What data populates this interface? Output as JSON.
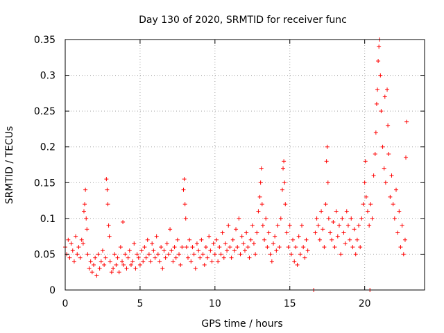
{
  "chart_data": {
    "type": "scatter",
    "title": "Day 130 of 2020, SRMTID for receiver func",
    "xlabel": "GPS time / hours",
    "ylabel": "SRMTID / TECUs",
    "xlim": [
      0,
      24
    ],
    "ylim": [
      0,
      0.35
    ],
    "xticks": [
      0,
      5,
      10,
      15,
      20
    ],
    "xtick_labels": [
      "0",
      "5",
      "10",
      "15",
      "20"
    ],
    "yticks": [
      0,
      0.05,
      0.1,
      0.15,
      0.2,
      0.25,
      0.3,
      0.35
    ],
    "ytick_labels": [
      "0",
      "0.05",
      "0.1",
      "0.15",
      "0.2",
      "0.25",
      "0.3",
      "0.35"
    ],
    "grid": true,
    "marker": "+",
    "color": "#ff0000",
    "points": [
      [
        0.0,
        0.06
      ],
      [
        0.1,
        0.05
      ],
      [
        0.2,
        0.07
      ],
      [
        0.3,
        0.045
      ],
      [
        0.4,
        0.065
      ],
      [
        0.5,
        0.055
      ],
      [
        0.6,
        0.04
      ],
      [
        0.7,
        0.075
      ],
      [
        0.8,
        0.05
      ],
      [
        0.9,
        0.06
      ],
      [
        1.0,
        0.045
      ],
      [
        1.1,
        0.07
      ],
      [
        1.2,
        0.065
      ],
      [
        1.25,
        0.11
      ],
      [
        1.3,
        0.12
      ],
      [
        1.35,
        0.14
      ],
      [
        1.4,
        0.1
      ],
      [
        1.45,
        0.085
      ],
      [
        1.5,
        0.05
      ],
      [
        1.6,
        0.03
      ],
      [
        1.7,
        0.04
      ],
      [
        1.8,
        0.025
      ],
      [
        1.9,
        0.035
      ],
      [
        2.0,
        0.045
      ],
      [
        2.1,
        0.02
      ],
      [
        2.2,
        0.05
      ],
      [
        2.3,
        0.03
      ],
      [
        2.4,
        0.04
      ],
      [
        2.5,
        0.055
      ],
      [
        2.6,
        0.035
      ],
      [
        2.7,
        0.045
      ],
      [
        2.75,
        0.155
      ],
      [
        2.8,
        0.14
      ],
      [
        2.85,
        0.12
      ],
      [
        2.9,
        0.09
      ],
      [
        2.95,
        0.075
      ],
      [
        3.0,
        0.04
      ],
      [
        3.1,
        0.025
      ],
      [
        3.2,
        0.03
      ],
      [
        3.3,
        0.05
      ],
      [
        3.4,
        0.035
      ],
      [
        3.5,
        0.045
      ],
      [
        3.6,
        0.025
      ],
      [
        3.7,
        0.06
      ],
      [
        3.8,
        0.04
      ],
      [
        3.85,
        0.095
      ],
      [
        3.9,
        0.035
      ],
      [
        4.0,
        0.05
      ],
      [
        4.1,
        0.03
      ],
      [
        4.2,
        0.045
      ],
      [
        4.3,
        0.055
      ],
      [
        4.4,
        0.035
      ],
      [
        4.5,
        0.04
      ],
      [
        4.6,
        0.065
      ],
      [
        4.7,
        0.03
      ],
      [
        4.8,
        0.05
      ],
      [
        4.9,
        0.045
      ],
      [
        5.0,
        0.035
      ],
      [
        5.1,
        0.055
      ],
      [
        5.2,
        0.04
      ],
      [
        5.3,
        0.06
      ],
      [
        5.4,
        0.045
      ],
      [
        5.5,
        0.07
      ],
      [
        5.6,
        0.05
      ],
      [
        5.7,
        0.04
      ],
      [
        5.8,
        0.065
      ],
      [
        5.9,
        0.055
      ],
      [
        6.0,
        0.045
      ],
      [
        6.1,
        0.075
      ],
      [
        6.2,
        0.05
      ],
      [
        6.3,
        0.04
      ],
      [
        6.4,
        0.06
      ],
      [
        6.5,
        0.03
      ],
      [
        6.6,
        0.055
      ],
      [
        6.7,
        0.045
      ],
      [
        6.8,
        0.065
      ],
      [
        6.9,
        0.05
      ],
      [
        7.0,
        0.085
      ],
      [
        7.1,
        0.055
      ],
      [
        7.2,
        0.04
      ],
      [
        7.3,
        0.06
      ],
      [
        7.4,
        0.045
      ],
      [
        7.5,
        0.07
      ],
      [
        7.6,
        0.05
      ],
      [
        7.7,
        0.035
      ],
      [
        7.8,
        0.06
      ],
      [
        7.9,
        0.14
      ],
      [
        7.95,
        0.155
      ],
      [
        8.0,
        0.12
      ],
      [
        8.05,
        0.1
      ],
      [
        8.1,
        0.06
      ],
      [
        8.2,
        0.045
      ],
      [
        8.3,
        0.07
      ],
      [
        8.4,
        0.04
      ],
      [
        8.5,
        0.06
      ],
      [
        8.6,
        0.05
      ],
      [
        8.7,
        0.03
      ],
      [
        8.8,
        0.065
      ],
      [
        8.9,
        0.055
      ],
      [
        9.0,
        0.045
      ],
      [
        9.1,
        0.07
      ],
      [
        9.2,
        0.05
      ],
      [
        9.3,
        0.035
      ],
      [
        9.4,
        0.06
      ],
      [
        9.5,
        0.045
      ],
      [
        9.6,
        0.075
      ],
      [
        9.7,
        0.055
      ],
      [
        9.8,
        0.04
      ],
      [
        9.9,
        0.065
      ],
      [
        10.0,
        0.05
      ],
      [
        10.1,
        0.07
      ],
      [
        10.2,
        0.04
      ],
      [
        10.3,
        0.06
      ],
      [
        10.4,
        0.05
      ],
      [
        10.5,
        0.08
      ],
      [
        10.6,
        0.045
      ],
      [
        10.7,
        0.065
      ],
      [
        10.8,
        0.055
      ],
      [
        10.9,
        0.09
      ],
      [
        11.0,
        0.06
      ],
      [
        11.1,
        0.045
      ],
      [
        11.2,
        0.07
      ],
      [
        11.3,
        0.055
      ],
      [
        11.4,
        0.085
      ],
      [
        11.5,
        0.06
      ],
      [
        11.6,
        0.1
      ],
      [
        11.7,
        0.05
      ],
      [
        11.8,
        0.075
      ],
      [
        11.9,
        0.065
      ],
      [
        12.0,
        0.055
      ],
      [
        12.1,
        0.08
      ],
      [
        12.2,
        0.06
      ],
      [
        12.3,
        0.045
      ],
      [
        12.4,
        0.07
      ],
      [
        12.5,
        0.09
      ],
      [
        12.6,
        0.065
      ],
      [
        12.7,
        0.05
      ],
      [
        12.8,
        0.08
      ],
      [
        12.9,
        0.11
      ],
      [
        13.0,
        0.13
      ],
      [
        13.05,
        0.15
      ],
      [
        13.1,
        0.17
      ],
      [
        13.15,
        0.12
      ],
      [
        13.2,
        0.09
      ],
      [
        13.3,
        0.07
      ],
      [
        13.4,
        0.1
      ],
      [
        13.5,
        0.06
      ],
      [
        13.6,
        0.08
      ],
      [
        13.7,
        0.05
      ],
      [
        13.8,
        0.04
      ],
      [
        13.9,
        0.065
      ],
      [
        14.0,
        0.075
      ],
      [
        14.1,
        0.055
      ],
      [
        14.2,
        0.09
      ],
      [
        14.3,
        0.06
      ],
      [
        14.4,
        0.1
      ],
      [
        14.5,
        0.14
      ],
      [
        14.55,
        0.17
      ],
      [
        14.6,
        0.18
      ],
      [
        14.65,
        0.15
      ],
      [
        14.7,
        0.12
      ],
      [
        14.8,
        0.08
      ],
      [
        14.9,
        0.06
      ],
      [
        15.0,
        0.09
      ],
      [
        15.1,
        0.05
      ],
      [
        15.2,
        0.07
      ],
      [
        15.3,
        0.04
      ],
      [
        15.4,
        0.06
      ],
      [
        15.5,
        0.035
      ],
      [
        15.6,
        0.075
      ],
      [
        15.7,
        0.05
      ],
      [
        15.8,
        0.09
      ],
      [
        15.9,
        0.06
      ],
      [
        16.0,
        0.045
      ],
      [
        16.1,
        0.07
      ],
      [
        16.2,
        0.055
      ],
      [
        16.6,
        0.0
      ],
      [
        16.7,
        0.08
      ],
      [
        16.8,
        0.1
      ],
      [
        16.9,
        0.09
      ],
      [
        17.0,
        0.07
      ],
      [
        17.1,
        0.11
      ],
      [
        17.2,
        0.085
      ],
      [
        17.3,
        0.06
      ],
      [
        17.4,
        0.12
      ],
      [
        17.45,
        0.18
      ],
      [
        17.5,
        0.2
      ],
      [
        17.55,
        0.15
      ],
      [
        17.6,
        0.1
      ],
      [
        17.7,
        0.08
      ],
      [
        17.8,
        0.07
      ],
      [
        17.9,
        0.095
      ],
      [
        18.0,
        0.06
      ],
      [
        18.1,
        0.11
      ],
      [
        18.2,
        0.075
      ],
      [
        18.3,
        0.09
      ],
      [
        18.4,
        0.05
      ],
      [
        18.5,
        0.1
      ],
      [
        18.6,
        0.08
      ],
      [
        18.7,
        0.065
      ],
      [
        18.8,
        0.11
      ],
      [
        18.9,
        0.09
      ],
      [
        19.0,
        0.07
      ],
      [
        19.1,
        0.1
      ],
      [
        19.2,
        0.06
      ],
      [
        19.3,
        0.085
      ],
      [
        19.4,
        0.05
      ],
      [
        19.5,
        0.07
      ],
      [
        19.6,
        0.09
      ],
      [
        19.7,
        0.06
      ],
      [
        19.8,
        0.1
      ],
      [
        19.9,
        0.12
      ],
      [
        20.0,
        0.15
      ],
      [
        20.05,
        0.18
      ],
      [
        20.1,
        0.13
      ],
      [
        20.2,
        0.11
      ],
      [
        20.3,
        0.09
      ],
      [
        20.35,
        0.0
      ],
      [
        20.4,
        0.12
      ],
      [
        20.5,
        0.1
      ],
      [
        20.6,
        0.16
      ],
      [
        20.7,
        0.19
      ],
      [
        20.75,
        0.22
      ],
      [
        20.8,
        0.26
      ],
      [
        20.85,
        0.28
      ],
      [
        20.9,
        0.32
      ],
      [
        20.95,
        0.34
      ],
      [
        21.0,
        0.35
      ],
      [
        21.05,
        0.3
      ],
      [
        21.1,
        0.25
      ],
      [
        21.2,
        0.2
      ],
      [
        21.3,
        0.17
      ],
      [
        21.35,
        0.27
      ],
      [
        21.4,
        0.15
      ],
      [
        21.5,
        0.28
      ],
      [
        21.55,
        0.23
      ],
      [
        21.6,
        0.19
      ],
      [
        21.7,
        0.13
      ],
      [
        21.8,
        0.16
      ],
      [
        21.9,
        0.12
      ],
      [
        22.0,
        0.1
      ],
      [
        22.1,
        0.14
      ],
      [
        22.2,
        0.08
      ],
      [
        22.3,
        0.11
      ],
      [
        22.4,
        0.06
      ],
      [
        22.5,
        0.09
      ],
      [
        22.6,
        0.05
      ],
      [
        22.7,
        0.07
      ],
      [
        22.75,
        0.185
      ],
      [
        22.8,
        0.235
      ]
    ]
  }
}
